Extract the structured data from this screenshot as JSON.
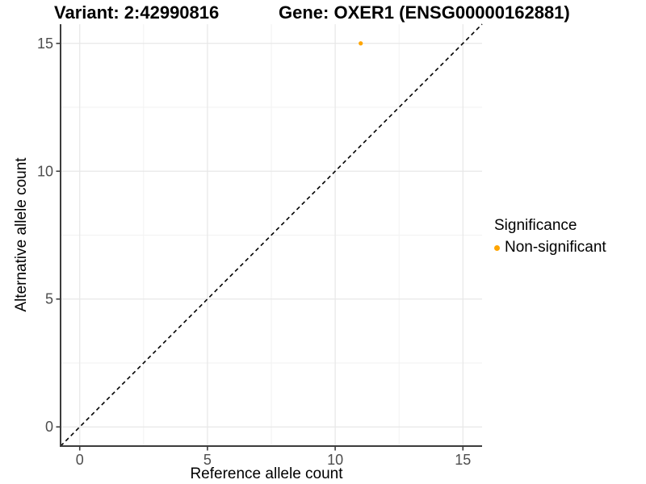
{
  "chart_data": {
    "type": "scatter",
    "titles": [
      "Variant: 2:42990816",
      "Gene: OXER1 (ENSG00000162881)"
    ],
    "xlabel": "Reference allele count",
    "ylabel": "Alternative allele count",
    "xlim": [
      -0.75,
      15.75
    ],
    "ylim": [
      -0.75,
      15.75
    ],
    "x_major_ticks": [
      0,
      5,
      10,
      15
    ],
    "y_major_ticks": [
      0,
      5,
      10,
      15
    ],
    "x_minor_ticks": [
      2.5,
      7.5,
      12.5
    ],
    "y_minor_ticks": [
      2.5,
      7.5,
      12.5
    ],
    "grid": "major+minor",
    "identity_line": {
      "slope": 1,
      "intercept": 0,
      "style": "dashed"
    },
    "series": [
      {
        "name": "Non-significant",
        "color": "#FFA500",
        "points": [
          [
            11,
            15
          ]
        ]
      }
    ],
    "legend": {
      "title": "Significance",
      "position": "right",
      "items": [
        {
          "label": "Non-significant",
          "color": "#FFA500"
        }
      ]
    }
  },
  "colors": {
    "background": "#FFFFFF",
    "point": "#FFA500",
    "grid_major": "#E7E7E7",
    "grid_minor": "#F2F2F2",
    "axis_line": "#3C3C3C",
    "tick_label": "#4D4D4D",
    "dashed_line": "#000000",
    "title_text": "#000000"
  }
}
